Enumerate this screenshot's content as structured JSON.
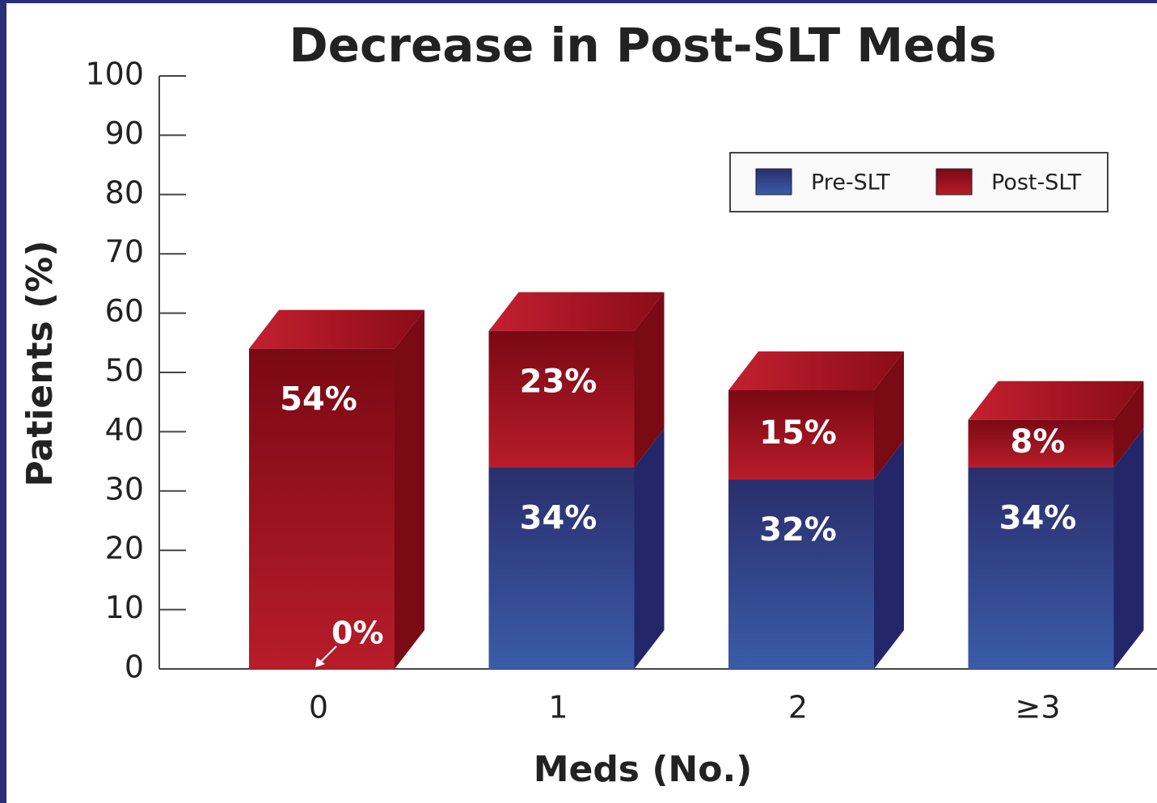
{
  "chart_data": {
    "type": "bar",
    "stacked": true,
    "three_d": true,
    "title": "Decrease in Post-SLT Meds",
    "x_label": "Meds (No.)",
    "y_label": "Patients (%)",
    "categories": [
      "0",
      "1",
      "2",
      "≥3"
    ],
    "series": [
      {
        "name": "Pre-SLT",
        "color": "#34509a",
        "values": [
          0,
          34,
          32,
          34
        ],
        "value_labels": [
          "0%",
          "34%",
          "32%",
          "34%"
        ]
      },
      {
        "name": "Post-SLT",
        "color": "#a8182a",
        "values": [
          54,
          23,
          15,
          8
        ],
        "value_labels": [
          "54%",
          "23%",
          "15%",
          "8%"
        ]
      }
    ],
    "ylim": [
      0,
      100
    ],
    "yticks": [
      0,
      10,
      20,
      30,
      40,
      50,
      60,
      70,
      80,
      90,
      100
    ],
    "legend": "upper right"
  }
}
